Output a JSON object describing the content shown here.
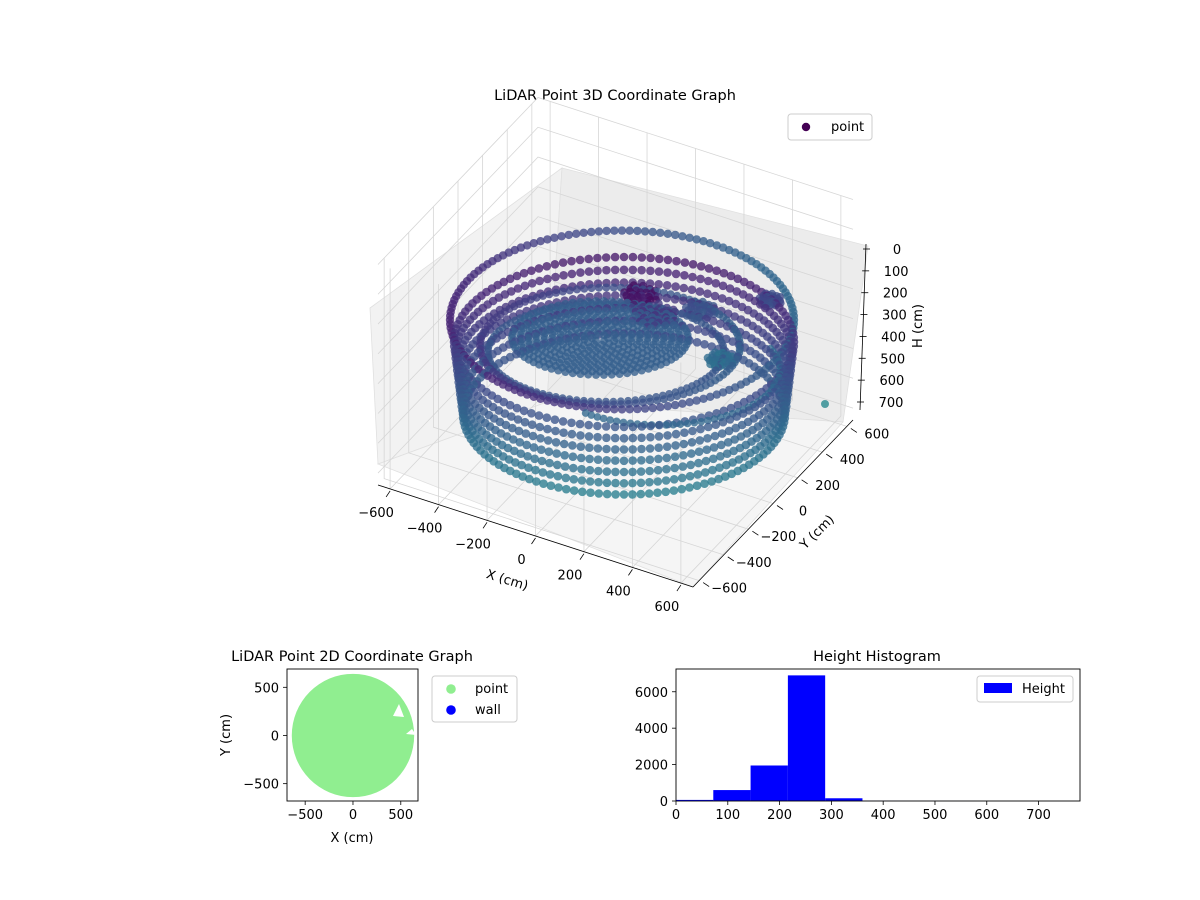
{
  "chart_data": [
    {
      "type": "scatter",
      "projection": "3d",
      "title": "LiDAR Point 3D Coordinate Graph",
      "xlabel": "X (cm)",
      "ylabel": "Y (cm)",
      "zlabel": "H (cm)",
      "xticks": [
        -600,
        -400,
        -200,
        0,
        200,
        400,
        600
      ],
      "yticks": [
        -600,
        -400,
        -200,
        0,
        200,
        400,
        600
      ],
      "zticks": [
        0,
        100,
        200,
        300,
        400,
        500,
        600,
        700
      ],
      "xlim": [
        -650,
        650
      ],
      "ylim": [
        -650,
        650
      ],
      "zlim": [
        740,
        0
      ],
      "z_axis_inverted": true,
      "colormap": "viridis",
      "grid": true,
      "legend": {
        "position": "upper-right",
        "entries": [
          {
            "label": "point",
            "color": "#440154"
          }
        ]
      },
      "shape": {
        "outer_ring_radius": 620,
        "inner_ring_radius": 450,
        "floor_disc_radius": 300,
        "height_range": [
          0,
          740
        ],
        "outlier": {
          "x": 600,
          "y": -200,
          "h": 700
        }
      }
    },
    {
      "type": "scatter",
      "title": "LiDAR Point 2D Coordinate Graph",
      "xlabel": "X (cm)",
      "ylabel": "Y (cm)",
      "xticks": [
        -500,
        0,
        500
      ],
      "yticks": [
        -500,
        0,
        500
      ],
      "xlim": [
        -690,
        680
      ],
      "ylim": [
        -680,
        690
      ],
      "aspect": "equal",
      "legend": {
        "position": "outside-right",
        "entries": [
          {
            "label": "point",
            "color": "#90ee90"
          },
          {
            "label": "wall",
            "color": "#0000ff"
          }
        ]
      },
      "series": [
        {
          "name": "point",
          "color": "#90ee90",
          "shape": "disc",
          "center": [
            0,
            0
          ],
          "radius": 640
        }
      ]
    },
    {
      "type": "bar",
      "title": "Height Histogram",
      "xlabel": "",
      "ylabel": "",
      "bin_edges": [
        0,
        72,
        144,
        216,
        288,
        360,
        432,
        504,
        576,
        648,
        720
      ],
      "values": [
        60,
        600,
        1950,
        6900,
        150,
        10,
        5,
        3,
        2,
        1
      ],
      "xticks": [
        0,
        100,
        200,
        300,
        400,
        500,
        600,
        700
      ],
      "yticks": [
        0,
        2000,
        4000,
        6000
      ],
      "xlim": [
        0,
        780
      ],
      "ylim": [
        0,
        7250
      ],
      "color": "#0000ff",
      "legend": {
        "position": "upper-right",
        "entries": [
          {
            "label": "Height",
            "color": "#0000ff"
          }
        ]
      }
    }
  ]
}
